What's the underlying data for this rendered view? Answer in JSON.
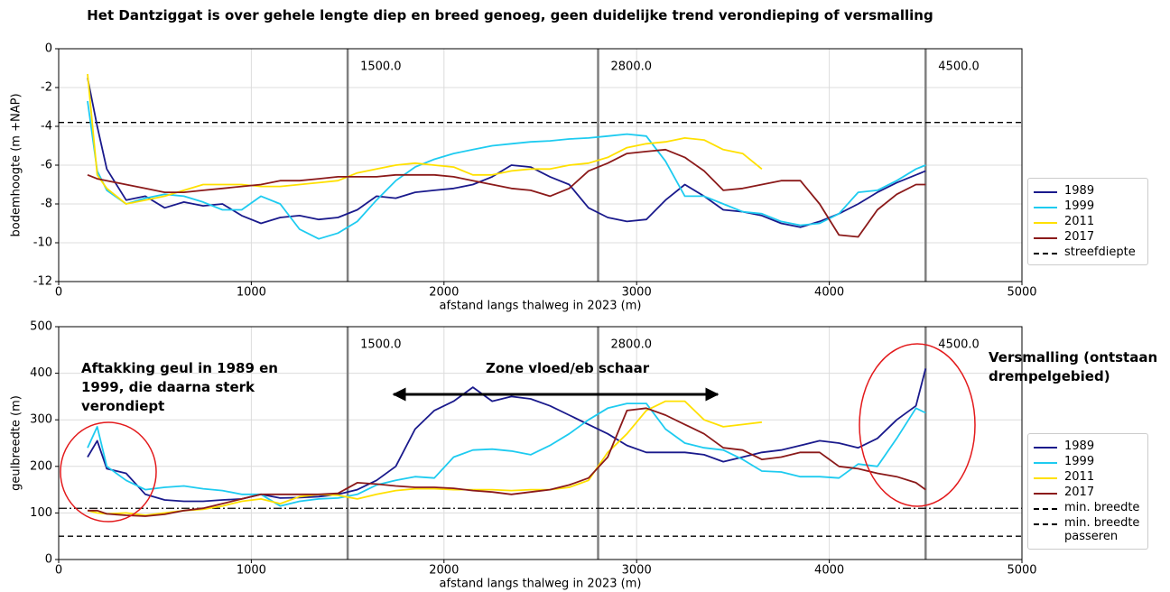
{
  "chart_data": [
    {
      "type": "line",
      "title": "Het Dantziggat is over gehele lengte diep en breed genoeg, geen duidelijke trend verondieping of versmalling",
      "xlabel": "afstand langs thalweg in 2023 (m)",
      "ylabel": "bodemhoogte (m +NAP)",
      "xlim": [
        0,
        5000
      ],
      "ylim": [
        -12,
        0
      ],
      "xticks": [
        0,
        1000,
        2000,
        3000,
        4000,
        5000
      ],
      "yticks": [
        -12,
        -10,
        -8,
        -6,
        -4,
        -2,
        0
      ],
      "grid": true,
      "x": [
        150,
        200,
        250,
        350,
        450,
        550,
        650,
        750,
        850,
        950,
        1050,
        1150,
        1250,
        1350,
        1450,
        1550,
        1650,
        1750,
        1850,
        1950,
        2050,
        2150,
        2250,
        2350,
        2450,
        2550,
        2650,
        2750,
        2850,
        2950,
        3050,
        3150,
        3250,
        3350,
        3450,
        3550,
        3650,
        3750,
        3850,
        3950,
        4050,
        4150,
        4250,
        4350,
        4450,
        4500
      ],
      "series": [
        {
          "name": "1989",
          "color": "#1a1a8c",
          "values": [
            -1.5,
            -4.0,
            -6.2,
            -7.8,
            -7.6,
            -8.2,
            -7.9,
            -8.1,
            -8.0,
            -8.6,
            -9.0,
            -8.7,
            -8.6,
            -8.8,
            -8.7,
            -8.3,
            -7.6,
            -7.7,
            -7.4,
            -7.3,
            -7.2,
            -7.0,
            -6.6,
            -6.0,
            -6.1,
            -6.6,
            -7.0,
            -8.2,
            -8.7,
            -8.9,
            -8.8,
            -7.8,
            -7.0,
            -7.6,
            -8.3,
            -8.4,
            -8.6,
            -9.0,
            -9.2,
            -8.9,
            -8.5,
            -8.0,
            -7.4,
            -6.9,
            -6.5,
            -6.3
          ]
        },
        {
          "name": "1999",
          "color": "#1ecbf0",
          "values": [
            -2.7,
            -6.3,
            -7.3,
            -8.0,
            -7.7,
            -7.5,
            -7.6,
            -7.9,
            -8.3,
            -8.3,
            -7.6,
            -8.0,
            -9.3,
            -9.8,
            -9.5,
            -8.9,
            -7.8,
            -6.8,
            -6.1,
            -5.7,
            -5.4,
            -5.2,
            -5.0,
            -4.9,
            -4.8,
            -4.75,
            -4.65,
            -4.6,
            -4.5,
            -4.4,
            -4.5,
            -5.8,
            -7.6,
            -7.6,
            -8.0,
            -8.4,
            -8.5,
            -8.9,
            -9.1,
            -9.0,
            -8.5,
            -7.4,
            -7.3,
            -6.8,
            -6.2,
            -6.0
          ]
        },
        {
          "name": "2011",
          "color": "#ffe000",
          "values": [
            -1.3,
            -6.5,
            -7.2,
            -8.0,
            -7.8,
            -7.6,
            -7.3,
            -7.0,
            -7.0,
            -7.0,
            -7.1,
            -7.1,
            -7.0,
            -6.9,
            -6.8,
            -6.4,
            -6.2,
            -6.0,
            -5.9,
            -6.0,
            -6.1,
            -6.5,
            -6.5,
            -6.3,
            -6.2,
            -6.2,
            -6.0,
            -5.9,
            -5.6,
            -5.1,
            -4.9,
            -4.8,
            -4.6,
            -4.7,
            -5.2,
            -5.4,
            -6.2,
            null,
            null,
            null,
            null,
            null,
            null,
            null,
            null,
            null
          ]
        },
        {
          "name": "2017",
          "color": "#8b1a1a",
          "values": [
            -6.5,
            -6.7,
            -6.8,
            -7.0,
            -7.2,
            -7.4,
            -7.4,
            -7.3,
            -7.2,
            -7.1,
            -7.0,
            -6.8,
            -6.8,
            -6.7,
            -6.6,
            -6.6,
            -6.6,
            -6.5,
            -6.5,
            -6.5,
            -6.6,
            -6.8,
            -7.0,
            -7.2,
            -7.3,
            -7.6,
            -7.2,
            -6.3,
            -5.9,
            -5.4,
            -5.3,
            -5.2,
            -5.6,
            -6.3,
            -7.3,
            -7.2,
            -7.0,
            -6.8,
            -6.8,
            -8.0,
            -9.6,
            -9.7,
            -8.3,
            -7.5,
            -7.0,
            -7.0
          ]
        }
      ],
      "hlines": [
        {
          "name": "streefdiepte",
          "value": -3.8,
          "style": "dashed"
        }
      ],
      "vlines": [
        {
          "value": 1500,
          "label": "1500.0"
        },
        {
          "value": 2800,
          "label": "2800.0"
        },
        {
          "value": 4500,
          "label": "4500.0"
        }
      ]
    },
    {
      "type": "line",
      "xlabel": "afstand langs thalweg in 2023 (m)",
      "ylabel": "geulbreedte (m)",
      "xlim": [
        0,
        5000
      ],
      "ylim": [
        0,
        500
      ],
      "xticks": [
        0,
        1000,
        2000,
        3000,
        4000,
        5000
      ],
      "yticks": [
        0,
        100,
        200,
        300,
        400,
        500
      ],
      "grid": true,
      "x": [
        150,
        200,
        250,
        350,
        450,
        550,
        650,
        750,
        850,
        950,
        1050,
        1150,
        1250,
        1350,
        1450,
        1550,
        1650,
        1750,
        1850,
        1950,
        2050,
        2150,
        2250,
        2350,
        2450,
        2550,
        2650,
        2750,
        2850,
        2950,
        3050,
        3150,
        3250,
        3350,
        3450,
        3550,
        3650,
        3750,
        3850,
        3950,
        4050,
        4150,
        4250,
        4350,
        4450,
        4500
      ],
      "series": [
        {
          "name": "1989",
          "color": "#1a1a8c",
          "values": [
            220,
            255,
            195,
            185,
            140,
            128,
            125,
            125,
            128,
            130,
            140,
            132,
            133,
            135,
            140,
            150,
            170,
            200,
            280,
            320,
            340,
            370,
            340,
            350,
            345,
            330,
            310,
            290,
            270,
            245,
            230,
            230,
            230,
            225,
            210,
            220,
            230,
            235,
            245,
            255,
            250,
            240,
            260,
            300,
            330,
            410
          ]
        },
        {
          "name": "1999",
          "color": "#1ecbf0",
          "values": [
            240,
            285,
            200,
            170,
            150,
            155,
            158,
            152,
            148,
            140,
            140,
            115,
            125,
            130,
            132,
            140,
            160,
            170,
            178,
            175,
            220,
            235,
            237,
            233,
            225,
            245,
            270,
            300,
            325,
            335,
            335,
            280,
            250,
            240,
            235,
            215,
            190,
            188,
            178,
            178,
            175,
            205,
            200,
            260,
            325,
            315
          ]
        },
        {
          "name": "2011",
          "color": "#ffe000",
          "values": [
            105,
            100,
            98,
            100,
            95,
            100,
            105,
            108,
            115,
            125,
            130,
            120,
            135,
            140,
            138,
            130,
            140,
            148,
            152,
            152,
            150,
            150,
            150,
            148,
            150,
            150,
            155,
            170,
            230,
            270,
            320,
            340,
            340,
            300,
            285,
            290,
            295,
            null,
            null,
            null,
            null,
            null,
            null,
            null,
            null,
            null
          ]
        },
        {
          "name": "2017",
          "color": "#8b1a1a",
          "values": [
            105,
            105,
            98,
            95,
            93,
            97,
            105,
            110,
            120,
            130,
            140,
            140,
            140,
            140,
            142,
            165,
            162,
            158,
            155,
            155,
            153,
            148,
            145,
            140,
            145,
            150,
            160,
            175,
            220,
            320,
            325,
            310,
            290,
            270,
            240,
            235,
            215,
            220,
            230,
            230,
            200,
            195,
            185,
            178,
            165,
            150
          ]
        }
      ],
      "hlines": [
        {
          "name": "min. breedte",
          "value": 50,
          "style": "dashed"
        },
        {
          "name": "min. breedte passeren",
          "value": 110,
          "style": "dashdot"
        }
      ],
      "vlines": [
        {
          "value": 1500,
          "label": "1500.0"
        },
        {
          "value": 2800,
          "label": "2800.0"
        },
        {
          "value": 4500,
          "label": "4500.0"
        }
      ],
      "annotations": [
        "Aftakking geul in 1989 en 1999, die daarna sterk verondiept",
        "Zone vloed/eb schaar",
        "Versmalling (ontstaan drempelgebied)"
      ]
    }
  ]
}
